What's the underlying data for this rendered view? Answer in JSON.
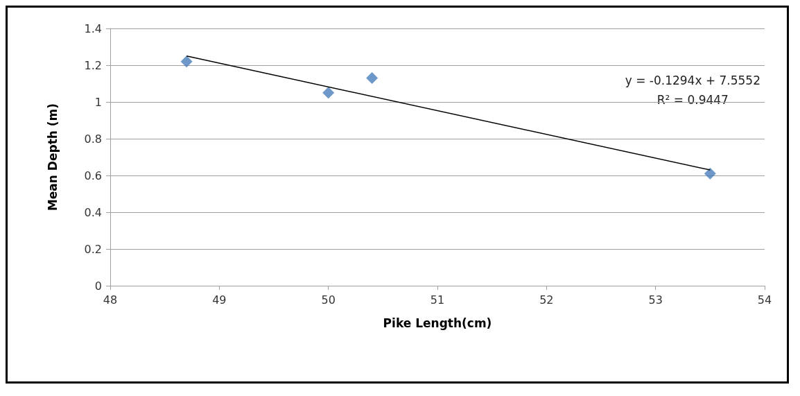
{
  "chart_data": {
    "type": "scatter",
    "xlabel": "Pike Length(cm)",
    "ylabel": "Mean Depth (m)",
    "xlim": [
      48,
      54
    ],
    "xticks": [
      48,
      49,
      50,
      51,
      52,
      53,
      54
    ],
    "ylim": [
      0,
      1.4
    ],
    "yticks": [
      0,
      0.2,
      0.4,
      0.6,
      0.8,
      1,
      1.2,
      1.4
    ],
    "grid": "y",
    "marker": "diamond",
    "series": [
      {
        "color": "#4a7ebb",
        "x": [
          48.7,
          50.0,
          50.4,
          53.5
        ],
        "values": [
          1.22,
          1.05,
          1.13,
          0.61
        ]
      },
      {
        "type": "line",
        "color": "#000000",
        "marker": "none",
        "x": [
          48.7,
          53.5
        ],
        "values": [
          1.25,
          0.63
        ]
      }
    ],
    "annotations": [
      "y = -0.1294x + 7.5552",
      "R² = 0.9447"
    ]
  }
}
